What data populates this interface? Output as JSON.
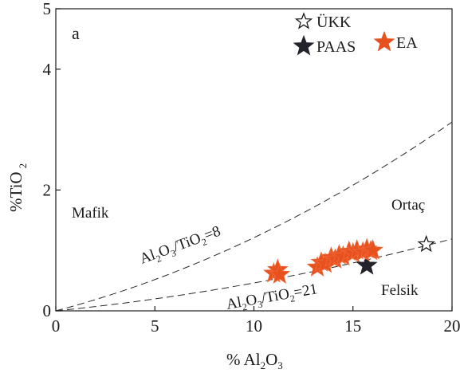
{
  "chart_data": {
    "type": "scatter",
    "panel_label": "a",
    "xlabel": {
      "prefix": "% Al",
      "sub1": "2",
      "mid": "O",
      "sub2": "3"
    },
    "ylabel": {
      "main": "%TiO",
      "sub": "2"
    },
    "xlim": [
      0,
      20
    ],
    "ylim": [
      0,
      5
    ],
    "x_ticks": [
      0,
      5,
      10,
      15,
      20
    ],
    "y_ticks": [
      0,
      2,
      4,
      5
    ],
    "x_tick_labels": [
      "0",
      "5",
      "10",
      "15",
      "20"
    ],
    "y_tick_labels": [
      "0",
      "2",
      "4",
      "5"
    ],
    "legend": [
      {
        "name": "ÜKK",
        "marker": "star-open",
        "color": "#1a1a1a"
      },
      {
        "name": "PAAS",
        "marker": "star-filled",
        "color": "#22232b"
      },
      {
        "name": "EA",
        "marker": "star-filled",
        "color": "#e8501e"
      }
    ],
    "legend_placement": "top-right",
    "series": [
      {
        "name": "ÜKK",
        "x": [
          18.7
        ],
        "y": [
          1.1
        ],
        "marker": "star-open",
        "color": "#1a1a1a"
      },
      {
        "name": "PAAS",
        "x": [
          15.7
        ],
        "y": [
          0.75
        ],
        "marker": "star-filled",
        "color": "#22232b"
      },
      {
        "name": "EA",
        "marker": "star-filled",
        "color": "#e8501e",
        "x": [
          11.0,
          11.2,
          11.3,
          13.2,
          13.4,
          13.6,
          13.9,
          14.1,
          14.3,
          14.5,
          14.8,
          15.0,
          15.2,
          15.5,
          15.7,
          15.9,
          16.0
        ],
        "y": [
          0.62,
          0.68,
          0.6,
          0.72,
          0.8,
          0.78,
          0.88,
          0.85,
          0.92,
          0.9,
          0.98,
          0.95,
          1.0,
          0.97,
          1.02,
          0.99,
          1.0
        ]
      }
    ],
    "reference_lines": [
      {
        "label_main": "Al",
        "sub1": "2",
        "mid": "O",
        "sub2": "3",
        "mid2": "/TiO",
        "sub3": "2",
        "value": "=8",
        "ratio": 8
      },
      {
        "label_main": "Al",
        "sub1": "2",
        "mid": "O",
        "sub2": "3",
        "mid2": "/TiO",
        "sub3": "2",
        "value": "=21",
        "ratio": 21
      }
    ],
    "region_labels": {
      "mafic": "Mafik",
      "intermediate": "Ortaç",
      "felsic": "Felsik"
    },
    "grid": false
  }
}
